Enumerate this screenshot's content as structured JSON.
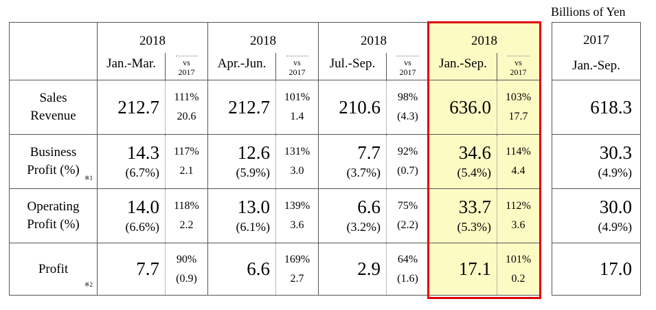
{
  "unit_label": "Billions of Yen",
  "header": {
    "columns": [
      {
        "year": "2018",
        "period": "Jan.-Mar.",
        "vs": "vs",
        "vs_year": "2017"
      },
      {
        "year": "2018",
        "period": "Apr.-Jun.",
        "vs": "vs",
        "vs_year": "2017"
      },
      {
        "year": "2018",
        "period": "Jul.-Sep.",
        "vs": "vs",
        "vs_year": "2017"
      },
      {
        "year": "2018",
        "period": "Jan.-Sep.",
        "vs": "vs",
        "vs_year": "2017"
      }
    ],
    "prior": {
      "year": "2017",
      "period": "Jan.-Sep."
    }
  },
  "rows": [
    {
      "label_line1": "Sales",
      "label_line2": "Revenue",
      "note": "",
      "cells": [
        {
          "value": "212.7",
          "pct": "",
          "rate": "111%",
          "diff": "20.6"
        },
        {
          "value": "212.7",
          "pct": "",
          "rate": "101%",
          "diff": "1.4"
        },
        {
          "value": "210.6",
          "pct": "",
          "rate": "98%",
          "diff": "(4.3)"
        },
        {
          "value": "636.0",
          "pct": "",
          "rate": "103%",
          "diff": "17.7"
        }
      ],
      "prior": {
        "value": "618.3",
        "pct": ""
      }
    },
    {
      "label_line1": "Business",
      "label_line2": "Profit (%)",
      "note": "※1",
      "cells": [
        {
          "value": "14.3",
          "pct": "(6.7%)",
          "rate": "117%",
          "diff": "2.1"
        },
        {
          "value": "12.6",
          "pct": "(5.9%)",
          "rate": "131%",
          "diff": "3.0"
        },
        {
          "value": "7.7",
          "pct": "(3.7%)",
          "rate": "92%",
          "diff": "(0.7)"
        },
        {
          "value": "34.6",
          "pct": "(5.4%)",
          "rate": "114%",
          "diff": "4.4"
        }
      ],
      "prior": {
        "value": "30.3",
        "pct": "(4.9%)"
      }
    },
    {
      "label_line1": "Operating",
      "label_line2": "Profit (%)",
      "note": "",
      "cells": [
        {
          "value": "14.0",
          "pct": "(6.6%)",
          "rate": "118%",
          "diff": "2.2"
        },
        {
          "value": "13.0",
          "pct": "(6.1%)",
          "rate": "139%",
          "diff": "3.6"
        },
        {
          "value": "6.6",
          "pct": "(3.2%)",
          "rate": "75%",
          "diff": "(2.2)"
        },
        {
          "value": "33.7",
          "pct": "(5.3%)",
          "rate": "112%",
          "diff": "3.6"
        }
      ],
      "prior": {
        "value": "30.0",
        "pct": "(4.9%)"
      }
    },
    {
      "label_line1": "Profit",
      "label_line2": "",
      "note": "※2",
      "cells": [
        {
          "value": "7.7",
          "pct": "",
          "rate": "90%",
          "diff": "(0.9)"
        },
        {
          "value": "6.6",
          "pct": "",
          "rate": "169%",
          "diff": "2.7"
        },
        {
          "value": "2.9",
          "pct": "",
          "rate": "64%",
          "diff": "(1.6)"
        },
        {
          "value": "17.1",
          "pct": "",
          "rate": "101%",
          "diff": "0.2"
        }
      ],
      "prior": {
        "value": "17.0",
        "pct": ""
      }
    }
  ],
  "colors": {
    "highlight_fill": "#fdfbc4",
    "highlight_border": "#e00000"
  }
}
